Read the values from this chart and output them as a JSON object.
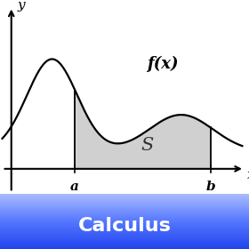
{
  "title": "Calculus",
  "title_color": "#ffffff",
  "title_fontsize": 16,
  "fill_color": "#d0d0d0",
  "curve_color": "#000000",
  "label_fx": "f(x)",
  "label_s": "S",
  "label_a": "a",
  "label_b": "b",
  "label_x": "x",
  "label_y": "y",
  "a": 0.28,
  "b": 0.88,
  "xlim": [
    -0.05,
    1.05
  ],
  "ylim": [
    -0.18,
    1.0
  ],
  "gradient_colors": [
    "#4466ff",
    "#aabbff",
    "#ffffff"
  ]
}
